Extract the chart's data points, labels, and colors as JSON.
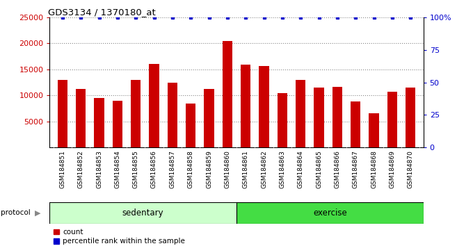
{
  "title": "GDS3134 / 1370180_at",
  "samples": [
    "GSM184851",
    "GSM184852",
    "GSM184853",
    "GSM184854",
    "GSM184855",
    "GSM184856",
    "GSM184857",
    "GSM184858",
    "GSM184859",
    "GSM184860",
    "GSM184861",
    "GSM184862",
    "GSM184863",
    "GSM184864",
    "GSM184865",
    "GSM184866",
    "GSM184867",
    "GSM184868",
    "GSM184869",
    "GSM184870"
  ],
  "counts": [
    13000,
    11200,
    9500,
    9000,
    13000,
    16000,
    12500,
    8500,
    11300,
    20500,
    15900,
    15600,
    10400,
    13000,
    11500,
    11700,
    8900,
    6600,
    10700,
    11500
  ],
  "bar_color": "#cc0000",
  "dot_color": "#0000cc",
  "ylim_left": [
    0,
    25000
  ],
  "ylim_right": [
    0,
    100
  ],
  "yticks_left": [
    5000,
    10000,
    15000,
    20000,
    25000
  ],
  "yticks_right": [
    0,
    25,
    50,
    75,
    100
  ],
  "ytick_labels_right": [
    "0",
    "25",
    "50",
    "75",
    "100%"
  ],
  "sedentary_samples": 10,
  "exercise_samples": 10,
  "sedentary_label": "sedentary",
  "exercise_label": "exercise",
  "protocol_label": "protocol",
  "legend_count_label": "count",
  "legend_pct_label": "percentile rank within the sample",
  "sedentary_color": "#ccffcc",
  "exercise_color": "#44dd44",
  "xtick_bg_color": "#cccccc",
  "bar_width": 0.55,
  "n": 20
}
